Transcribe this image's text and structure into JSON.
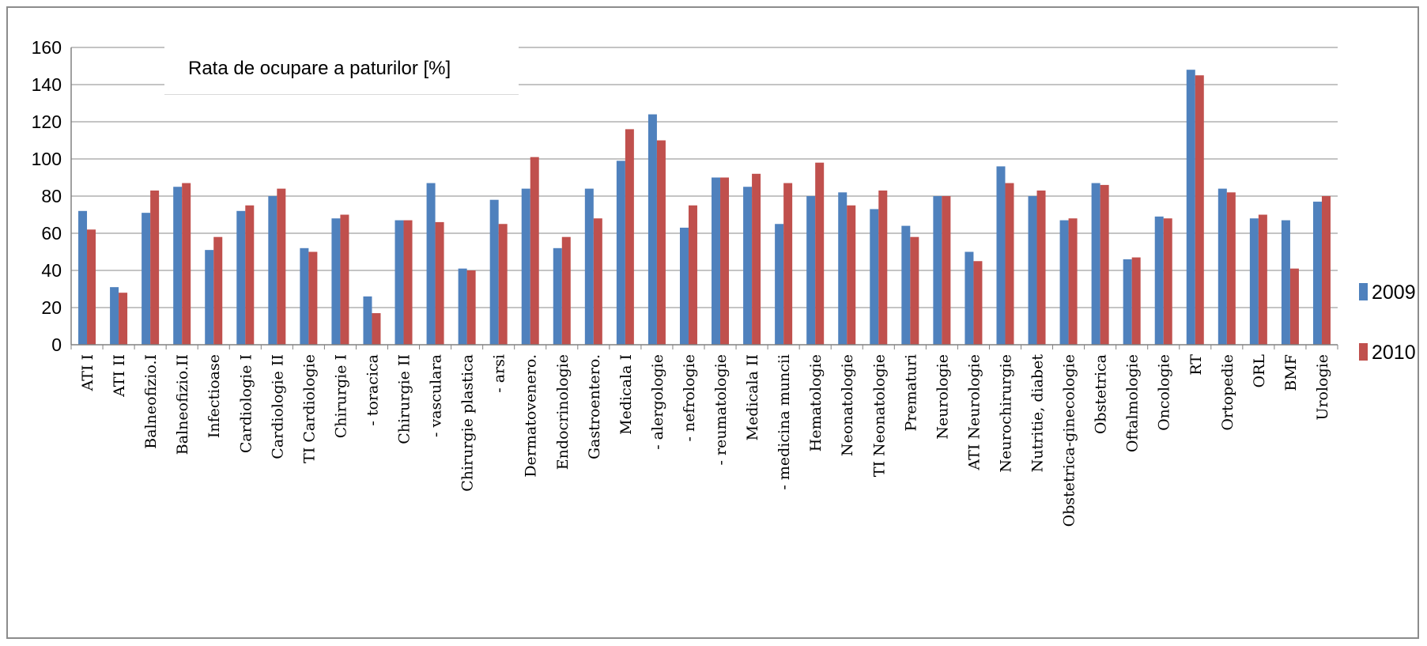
{
  "chart_data": {
    "type": "bar",
    "title": "Rata de ocupare a paturilor [%]",
    "xlabel": "",
    "ylabel": "",
    "ylim": [
      0,
      160
    ],
    "yticks": [
      0,
      20,
      40,
      60,
      80,
      100,
      120,
      140,
      160
    ],
    "grid": true,
    "legend_position": "right",
    "categories": [
      "ATI I",
      "ATI II",
      "Balneofizio.I",
      "Balneofizio.II",
      "Infectioase",
      "Cardiologie I",
      "Cardiologie II",
      "TI Cardiologie",
      "Chirurgie I",
      "- toracica",
      "Chirurgie II",
      "- vasculara",
      "Chirurgie plastica",
      "- arsi",
      "Dermatovenero.",
      "Endocrinologie",
      "Gastroentero.",
      "Medicala I",
      "- alergologie",
      "- nefrologie",
      "- reumatologie",
      "Medicala II",
      "- medicina muncii",
      "Hematologie",
      "Neonatologie",
      "TI Neonatologie",
      "Prematuri",
      "Neurologie",
      "ATI Neurologie",
      "Neurochirurgie",
      "Nutritie, diabet",
      "Obstetrica-ginecologie",
      "Obstetrica",
      "Oftalmologie",
      "Oncologie",
      "RT",
      "Ortopedie",
      "ORL",
      "BMF",
      "Urologie"
    ],
    "series": [
      {
        "name": "2009",
        "color": "#4f81bd",
        "values": [
          72,
          31,
          71,
          85,
          51,
          72,
          80,
          52,
          68,
          26,
          67,
          87,
          41,
          78,
          84,
          52,
          84,
          99,
          124,
          63,
          90,
          85,
          65,
          80,
          82,
          73,
          64,
          80,
          50,
          96,
          80,
          67,
          87,
          46,
          69,
          148,
          84,
          68,
          67,
          77
        ]
      },
      {
        "name": "2010",
        "color": "#c0504d",
        "values": [
          62,
          28,
          83,
          87,
          58,
          75,
          84,
          50,
          70,
          17,
          67,
          66,
          40,
          65,
          101,
          58,
          68,
          116,
          110,
          75,
          90,
          92,
          87,
          98,
          75,
          83,
          58,
          80,
          45,
          87,
          83,
          68,
          86,
          47,
          68,
          145,
          82,
          70,
          41,
          80
        ]
      }
    ]
  }
}
